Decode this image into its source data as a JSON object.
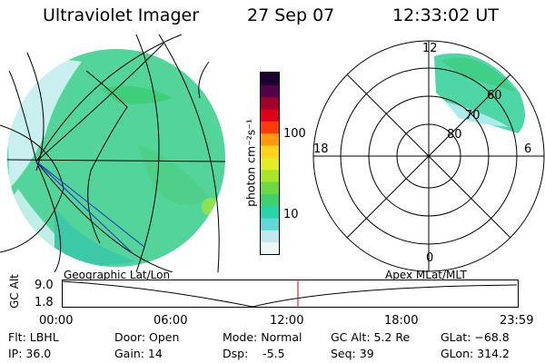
{
  "header": {
    "instrument": "Ultraviolet Imager",
    "date": "27 Sep 07",
    "time": "12:33:02 UT"
  },
  "colorbar": {
    "unit_label": "photon cm⁻²s⁻¹",
    "ticks": [
      "100",
      "10"
    ],
    "colors": [
      "#eef6f8",
      "#bfe9ee",
      "#5fd9d8",
      "#27d6a8",
      "#3fd070",
      "#6ed844",
      "#a8e62a",
      "#e2ee22",
      "#ffd21c",
      "#ff9a10",
      "#ff3a0a",
      "#e0001a",
      "#a0002a",
      "#55004a",
      "#1a0030"
    ]
  },
  "geo_map": {
    "caption": "Geographic Lat/Lon",
    "fill_color": "#4fd39a"
  },
  "polar_plot": {
    "caption": "Apex MLat/MLT",
    "mlt_labels": {
      "top": "12",
      "left": "18",
      "right": "6",
      "bottom": "0"
    },
    "ring_labels": [
      "60",
      "70",
      "80"
    ]
  },
  "timeline": {
    "axis_label": "GC Alt",
    "y_ticks": [
      "9.0",
      "1.8"
    ],
    "x_ticks": [
      "00:00",
      "06:00",
      "12:00",
      "18:00",
      "23:59"
    ],
    "marker_color": "#e00000"
  },
  "status": {
    "flt": "Flt: LBHL",
    "ip": "IP: 36.0",
    "door": "Door: Open",
    "gain": "Gain: 14",
    "mode": "Mode: Normal",
    "dsp": "Dsp:    -5.5",
    "gc_alt": "GC Alt: 5.2 Re",
    "seq": "Seq: 39",
    "glat": "GLat: −68.8",
    "glon": "GLon: 314.2"
  }
}
